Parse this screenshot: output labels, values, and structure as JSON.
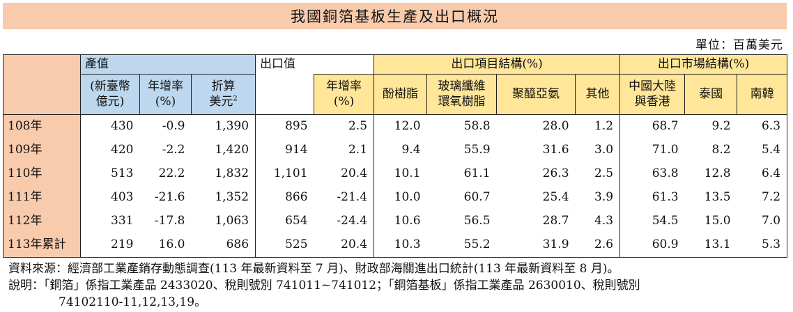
{
  "title": "我國銅箔基板生產及出口概況",
  "unit": "單位：百萬美元",
  "headers": {
    "production_value": "產值",
    "ntd_line1": "(新臺幣",
    "ntd_line2": "億元)",
    "growth_line1": "年增率",
    "growth_line2": "(%)",
    "usd_line1": "折算",
    "usd_line2": "美元",
    "usd_sup": "2",
    "export_value": "出口值",
    "export_growth_line1": "年增率",
    "export_growth_line2": "(%)",
    "export_items": "出口項目結構(%)",
    "phenolic": "酚樹脂",
    "glass_epoxy_line1": "玻璃纖維",
    "glass_epoxy_line2": "環氧樹脂",
    "polyimide": "聚醯亞氨",
    "other": "其他",
    "export_markets": "出口市場結構(%)",
    "china_line1": "中國大陸",
    "china_line2": "與香港",
    "thailand": "泰國",
    "korea": "南韓"
  },
  "rows": [
    {
      "year": "108年",
      "ntd": "430",
      "growth": "-0.9",
      "usd": "1,390",
      "export": "895",
      "export_growth": "2.5",
      "phenolic": "12.0",
      "glass_epoxy": "58.8",
      "polyimide": "28.0",
      "other": "1.2",
      "china": "68.7",
      "thailand": "9.2",
      "korea": "6.3"
    },
    {
      "year": "109年",
      "ntd": "420",
      "growth": "-2.2",
      "usd": "1,420",
      "export": "914",
      "export_growth": "2.1",
      "phenolic": "9.4",
      "glass_epoxy": "55.9",
      "polyimide": "31.6",
      "other": "3.0",
      "china": "71.0",
      "thailand": "8.2",
      "korea": "5.4"
    },
    {
      "year": "110年",
      "ntd": "513",
      "growth": "22.2",
      "usd": "1,832",
      "export": "1,101",
      "export_growth": "20.4",
      "phenolic": "10.1",
      "glass_epoxy": "61.1",
      "polyimide": "26.3",
      "other": "2.5",
      "china": "63.8",
      "thailand": "12.8",
      "korea": "6.4"
    },
    {
      "year": "111年",
      "ntd": "403",
      "growth": "-21.6",
      "usd": "1,352",
      "export": "866",
      "export_growth": "-21.4",
      "phenolic": "10.0",
      "glass_epoxy": "60.7",
      "polyimide": "25.4",
      "other": "3.9",
      "china": "61.3",
      "thailand": "13.5",
      "korea": "7.2"
    },
    {
      "year": "112年",
      "ntd": "331",
      "growth": "-17.8",
      "usd": "1,063",
      "export": "654",
      "export_growth": "-24.4",
      "phenolic": "10.6",
      "glass_epoxy": "56.5",
      "polyimide": "28.7",
      "other": "4.3",
      "china": "54.5",
      "thailand": "15.0",
      "korea": "7.0"
    },
    {
      "year": "113年累計",
      "ntd": "219",
      "growth": "16.0",
      "usd": "686",
      "export": "525",
      "export_growth": "20.4",
      "phenolic": "10.3",
      "glass_epoxy": "55.2",
      "polyimide": "31.9",
      "other": "2.6",
      "china": "60.9",
      "thailand": "13.1",
      "korea": "5.3"
    }
  ],
  "notes": {
    "source": "資料來源：經濟部工業產銷存動態調查(113 年最新資料至 7 月)、財政部海關進出口統計(113 年最新資料至 8 月)。",
    "explanation_line1": "說明：「銅箔」係指工業產品 2433020、稅則號別 741011~741012；「銅箔基板」係指工業產品 2630010、稅則號別",
    "explanation_line2": "74102110-11,12,13,19。"
  }
}
